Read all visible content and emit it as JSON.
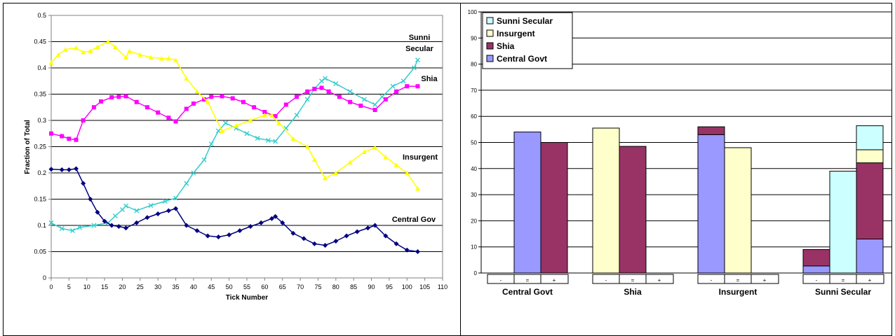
{
  "chart_data": [
    {
      "type": "line",
      "title": "",
      "xlabel": "Tick Number",
      "ylabel": "Fraction of Total",
      "xlim": [
        0,
        110
      ],
      "ylim": [
        0,
        0.5
      ],
      "xticks": [
        "0",
        "5",
        "10",
        "15",
        "20",
        "25",
        "30",
        "35",
        "40",
        "45",
        "50",
        "55",
        "60",
        "65",
        "70",
        "75",
        "80",
        "85",
        "90",
        "95",
        "100",
        "105",
        "110"
      ],
      "yticks": [
        "0",
        "0.05",
        "0.1",
        "0.15",
        "0.2",
        "0.25",
        "0.3",
        "0.35",
        "0.4",
        "0.45",
        "0.5"
      ],
      "grid": "horizontal",
      "series": [
        {
          "name": "Sunni Secular",
          "label": [
            "Sunni",
            "Secular"
          ],
          "color": "#33CCCC",
          "marker": "x",
          "x": [
            0,
            3,
            6,
            8,
            12,
            16,
            18,
            20,
            21,
            24,
            28,
            32,
            35,
            38,
            40,
            43,
            45,
            47,
            49,
            52,
            55,
            58,
            61,
            63,
            66,
            69,
            72,
            74,
            76,
            77,
            80,
            84,
            88,
            91,
            93,
            96,
            99,
            102,
            103
          ],
          "y": [
            0.105,
            0.094,
            0.09,
            0.096,
            0.1,
            0.105,
            0.118,
            0.13,
            0.137,
            0.128,
            0.138,
            0.146,
            0.152,
            0.18,
            0.2,
            0.225,
            0.255,
            0.28,
            0.295,
            0.285,
            0.275,
            0.266,
            0.262,
            0.26,
            0.285,
            0.31,
            0.34,
            0.36,
            0.375,
            0.38,
            0.37,
            0.355,
            0.34,
            0.33,
            0.345,
            0.365,
            0.375,
            0.4,
            0.415
          ]
        },
        {
          "name": "Shia",
          "label": [
            "Shia"
          ],
          "color": "#FF00FF",
          "marker": "square",
          "x": [
            0,
            3,
            5,
            7,
            9,
            12,
            14,
            17,
            19,
            21,
            24,
            27,
            30,
            33,
            35,
            38,
            40,
            43,
            45,
            48,
            51,
            54,
            57,
            60,
            63,
            66,
            69,
            72,
            74,
            76,
            78,
            81,
            84,
            87,
            91,
            94,
            97,
            100,
            103
          ],
          "y": [
            0.275,
            0.27,
            0.265,
            0.263,
            0.3,
            0.325,
            0.336,
            0.344,
            0.345,
            0.346,
            0.335,
            0.325,
            0.315,
            0.305,
            0.298,
            0.322,
            0.332,
            0.34,
            0.345,
            0.346,
            0.342,
            0.335,
            0.325,
            0.316,
            0.308,
            0.33,
            0.345,
            0.355,
            0.36,
            0.362,
            0.355,
            0.345,
            0.335,
            0.328,
            0.32,
            0.34,
            0.355,
            0.365,
            0.365
          ]
        },
        {
          "name": "Insurgent",
          "label": [
            "Insurgent"
          ],
          "color": "#FFFF00",
          "marker": "triangle",
          "x": [
            0,
            2,
            4,
            7,
            9,
            11,
            13,
            16,
            18,
            21,
            22,
            25,
            28,
            31,
            33,
            35,
            38,
            41,
            44,
            48,
            52,
            56,
            60,
            62,
            64,
            68,
            72,
            74,
            77,
            80,
            84,
            88,
            91,
            94,
            97,
            100,
            103
          ],
          "y": [
            0.41,
            0.425,
            0.435,
            0.438,
            0.43,
            0.432,
            0.44,
            0.45,
            0.44,
            0.42,
            0.432,
            0.425,
            0.42,
            0.418,
            0.418,
            0.415,
            0.38,
            0.355,
            0.335,
            0.28,
            0.29,
            0.3,
            0.31,
            0.31,
            0.295,
            0.265,
            0.25,
            0.225,
            0.19,
            0.2,
            0.22,
            0.24,
            0.248,
            0.23,
            0.215,
            0.2,
            0.17
          ]
        },
        {
          "name": "Central Gov",
          "label": [
            "Central Gov"
          ],
          "color": "#000080",
          "marker": "diamond",
          "x": [
            0,
            3,
            5,
            7,
            9,
            11,
            13,
            15,
            17,
            19,
            21,
            24,
            27,
            30,
            33,
            35,
            38,
            41,
            44,
            47,
            50,
            53,
            56,
            59,
            62,
            63,
            65,
            68,
            71,
            74,
            77,
            80,
            83,
            86,
            89,
            91,
            94,
            97,
            100,
            103
          ],
          "y": [
            0.207,
            0.206,
            0.206,
            0.208,
            0.18,
            0.15,
            0.125,
            0.108,
            0.1,
            0.098,
            0.095,
            0.105,
            0.115,
            0.122,
            0.128,
            0.132,
            0.1,
            0.09,
            0.08,
            0.078,
            0.082,
            0.09,
            0.098,
            0.105,
            0.113,
            0.117,
            0.105,
            0.085,
            0.075,
            0.065,
            0.062,
            0.07,
            0.08,
            0.088,
            0.095,
            0.1,
            0.08,
            0.065,
            0.053,
            0.05
          ]
        }
      ]
    },
    {
      "type": "bar",
      "stacked": true,
      "title": "",
      "ylim": [
        0,
        100
      ],
      "yticks": [
        "0",
        "10",
        "20",
        "30",
        "40",
        "50",
        "60",
        "70",
        "80",
        "90",
        "100"
      ],
      "grid": "horizontal",
      "legend": "top-left",
      "legend_items": [
        {
          "name": "Sunni Secular",
          "color": "#CCFFFF"
        },
        {
          "name": "Insurgent",
          "color": "#FFFFCC"
        },
        {
          "name": "Shia",
          "color": "#993366"
        },
        {
          "name": "Central Govt",
          "color": "#9999FF"
        }
      ],
      "groups": [
        {
          "name": "Central Govt",
          "sublabels": [
            "-",
            "=",
            "+"
          ],
          "bars": [
            {
              "sublabel": "-",
              "segments": []
            },
            {
              "sublabel": "=",
              "segments": [
                {
                  "series": "Central Govt",
                  "value": 54
                }
              ]
            },
            {
              "sublabel": "+",
              "segments": [
                {
                  "series": "Shia",
                  "value": 50
                }
              ]
            }
          ]
        },
        {
          "name": "Shia",
          "sublabels": [
            "-",
            "=",
            "+"
          ],
          "bars": [
            {
              "sublabel": "-",
              "segments": [
                {
                  "series": "Insurgent",
                  "value": 55.5
                }
              ]
            },
            {
              "sublabel": "=",
              "segments": [
                {
                  "series": "Shia",
                  "value": 48.5
                }
              ]
            },
            {
              "sublabel": "+",
              "segments": []
            }
          ]
        },
        {
          "name": "Insurgent",
          "sublabels": [
            "-",
            "=",
            "+"
          ],
          "bars": [
            {
              "sublabel": "-",
              "segments": [
                {
                  "series": "Central Govt",
                  "value": 53
                },
                {
                  "series": "Shia",
                  "value": 3
                }
              ]
            },
            {
              "sublabel": "=",
              "segments": [
                {
                  "series": "Insurgent",
                  "value": 48
                }
              ]
            },
            {
              "sublabel": "+",
              "segments": []
            }
          ]
        },
        {
          "name": "Sunni Secular",
          "sublabels": [
            "-",
            "=",
            "+"
          ],
          "bars": [
            {
              "sublabel": "-",
              "segments": [
                {
                  "series": "Central Govt",
                  "value": 2.7
                },
                {
                  "series": "Shia",
                  "value": 6.3
                }
              ]
            },
            {
              "sublabel": "=",
              "segments": [
                {
                  "series": "Sunni Secular",
                  "value": 39
                }
              ]
            },
            {
              "sublabel": "+",
              "segments": [
                {
                  "series": "Central Govt",
                  "value": 13
                },
                {
                  "series": "Shia",
                  "value": 29.2
                },
                {
                  "series": "Insurgent",
                  "value": 5
                },
                {
                  "series": "Sunni Secular",
                  "value": 9.2
                }
              ]
            }
          ]
        }
      ]
    }
  ]
}
